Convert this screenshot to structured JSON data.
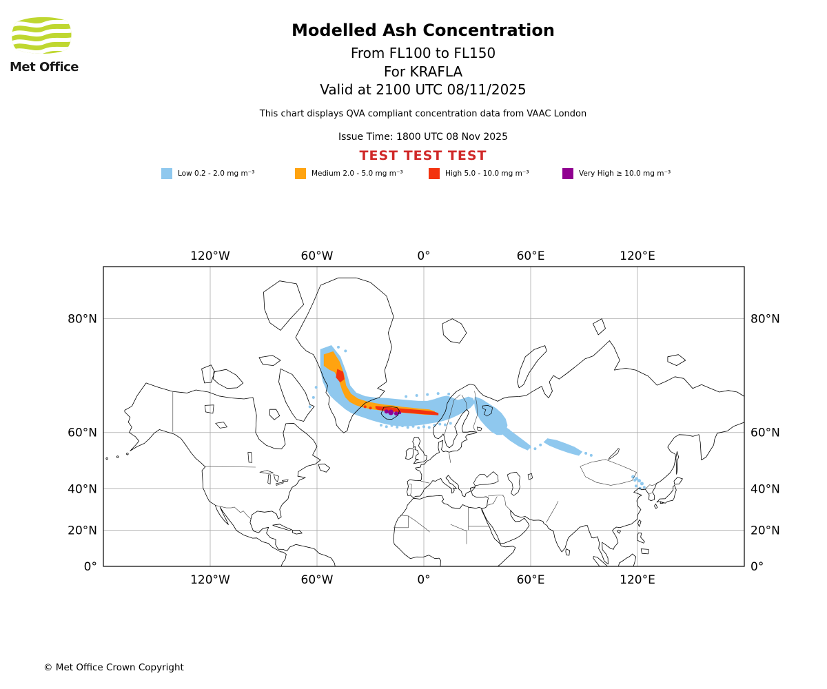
{
  "brand": {
    "logo_text": "Met Office"
  },
  "colors": {
    "logo_green": "#BFD730",
    "test_red": "#D02828",
    "grid": "#aaaaaa",
    "coast": "#000000"
  },
  "header": {
    "title": "Modelled Ash Concentration",
    "subtitle_levels": "From FL100 to FL150",
    "subtitle_volcano": "For KRAFLA",
    "subtitle_valid": "Valid at 2100 UTC 08/11/2025",
    "description": "This chart displays QVA compliant concentration data from VAAC London",
    "issue_time": "Issue Time: 1800 UTC 08 Nov 2025",
    "test_banner": "TEST TEST TEST"
  },
  "legend": {
    "items": [
      {
        "id": "low",
        "label": "Low 0.2 - 2.0 mg m⁻³",
        "color": "#8FC8EE"
      },
      {
        "id": "medium",
        "label": "Medium 2.0 - 5.0 mg m⁻³",
        "color": "#FFA310"
      },
      {
        "id": "high",
        "label": "High 5.0 - 10.0 mg m⁻³",
        "color": "#F3330F"
      },
      {
        "id": "very_high",
        "label": "Very High  ≥  10.0 mg m⁻³",
        "color": "#900090"
      }
    ]
  },
  "map": {
    "projection": "mercator",
    "extent": {
      "lon_min": -180,
      "lon_max": 180,
      "lat_min": 0,
      "lat_max": 84
    },
    "lon_ticks": [
      "120°W",
      "60°W",
      "0°",
      "60°E",
      "120°E"
    ],
    "lon_tick_values": [
      -120,
      -60,
      0,
      60,
      120
    ],
    "lat_ticks": [
      "80°N",
      "60°N",
      "40°N",
      "20°N",
      "0°"
    ],
    "lat_tick_values": [
      80,
      60,
      40,
      20,
      0
    ]
  },
  "ash_plume": {
    "layers": [
      {
        "level": "low",
        "color_ref": 0,
        "polygons": [
          [
            [
              -58,
              76.5
            ],
            [
              -52,
              77
            ],
            [
              -47,
              75.5
            ],
            [
              -43.5,
              73
            ],
            [
              -41.5,
              70.8
            ],
            [
              -38,
              69.4
            ],
            [
              -33,
              68.7
            ],
            [
              -27,
              68.4
            ],
            [
              -21,
              68.3
            ],
            [
              -15,
              68.1
            ],
            [
              -9,
              67.9
            ],
            [
              -3,
              67.7
            ],
            [
              2,
              67.7
            ],
            [
              6,
              68.1
            ],
            [
              10,
              68.6
            ],
            [
              13,
              68.8
            ],
            [
              16,
              68.4
            ],
            [
              19,
              67.9
            ],
            [
              22,
              68.2
            ],
            [
              25,
              68.6
            ],
            [
              27.5,
              68.3
            ],
            [
              28.5,
              67.4
            ],
            [
              26,
              66.3
            ],
            [
              22.5,
              65.4
            ],
            [
              19,
              64.6
            ],
            [
              15,
              63.8
            ],
            [
              11,
              63.2
            ],
            [
              7,
              62.8
            ],
            [
              3,
              62.5
            ],
            [
              -1,
              62.2
            ],
            [
              -5,
              62
            ],
            [
              -9,
              61.8
            ],
            [
              -13,
              61.8
            ],
            [
              -17,
              62
            ],
            [
              -21,
              62.3
            ],
            [
              -25,
              62.8
            ],
            [
              -29,
              63.3
            ],
            [
              -33,
              63.9
            ],
            [
              -37,
              64.5
            ],
            [
              -41,
              65.2
            ],
            [
              -44,
              66
            ],
            [
              -47,
              67
            ],
            [
              -50,
              68
            ],
            [
              -52.5,
              68.9
            ],
            [
              -54.5,
              70
            ],
            [
              -56.5,
              71.5
            ],
            [
              -58,
              73.5
            ],
            [
              -58,
              76.5
            ]
          ],
          [
            [
              28.8,
              68.6
            ],
            [
              32.5,
              68.1
            ],
            [
              36.5,
              67.1
            ],
            [
              40.5,
              66.1
            ],
            [
              43.5,
              65
            ],
            [
              45.8,
              63.6
            ],
            [
              46.8,
              62
            ],
            [
              46,
              60.4
            ],
            [
              43.8,
              59.4
            ],
            [
              41,
              59.4
            ],
            [
              38,
              60.3
            ],
            [
              34.8,
              61.8
            ],
            [
              31.8,
              63.4
            ],
            [
              29.8,
              65
            ],
            [
              28.8,
              66.4
            ],
            [
              28.4,
              67.6
            ],
            [
              28.8,
              68.6
            ]
          ],
          [
            [
              45,
              61.8
            ],
            [
              49,
              60.3
            ],
            [
              53,
              58.8
            ],
            [
              57,
              57.2
            ],
            [
              60,
              55.9
            ],
            [
              58.3,
              54.7
            ],
            [
              53.5,
              55.9
            ],
            [
              48.5,
              57.7
            ],
            [
              44.5,
              59.4
            ],
            [
              43.2,
              60.7
            ],
            [
              45,
              61.8
            ]
          ],
          [
            [
              69.5,
              58.2
            ],
            [
              74.5,
              57.7
            ],
            [
              79.5,
              56.7
            ],
            [
              84.5,
              55.6
            ],
            [
              88.8,
              54.1
            ],
            [
              87,
              52.9
            ],
            [
              81.5,
              53.8
            ],
            [
              75.5,
              55
            ],
            [
              70.5,
              56.2
            ],
            [
              67.5,
              57.2
            ],
            [
              69.5,
              58.2
            ]
          ]
        ],
        "dots": [
          [
            -24,
            62,
            2
          ],
          [
            -21,
            61.6,
            2
          ],
          [
            -18,
            61.9,
            2
          ],
          [
            -15,
            61.5,
            2
          ],
          [
            -12,
            61.8,
            2
          ],
          [
            -9,
            61.4,
            2
          ],
          [
            -6,
            61.7,
            2
          ],
          [
            -3,
            61.3,
            2
          ],
          [
            0,
            61.6,
            2
          ],
          [
            3,
            61.4,
            2
          ],
          [
            6,
            62,
            2
          ],
          [
            9,
            62.3,
            2
          ],
          [
            12,
            62.1,
            2
          ],
          [
            15,
            62.5,
            2
          ],
          [
            -10,
            68.7,
            2
          ],
          [
            -4,
            68.9,
            2
          ],
          [
            2,
            69.1,
            2
          ],
          [
            8,
            69.3,
            2
          ],
          [
            14,
            69.2,
            2
          ],
          [
            33,
            66.6,
            2
          ],
          [
            37,
            65.6,
            2
          ],
          [
            47.5,
            60.6,
            2
          ],
          [
            51.5,
            58.9,
            2
          ],
          [
            55.5,
            57.3,
            2
          ],
          [
            59.5,
            55.6,
            2
          ],
          [
            62.5,
            55.1,
            2
          ],
          [
            65.5,
            56.3,
            2
          ],
          [
            91,
            53.6,
            2
          ],
          [
            94,
            52.9,
            2
          ],
          [
            117.5,
            45,
            2.5
          ],
          [
            119.5,
            44.2,
            2.5
          ],
          [
            121,
            43.4,
            2.5
          ],
          [
            122.5,
            42.2,
            2.5
          ],
          [
            119.2,
            41.2,
            2
          ],
          [
            123.8,
            40.6,
            2
          ],
          [
            121.5,
            40.2,
            2
          ],
          [
            118.5,
            43.6,
            2
          ],
          [
            -62,
            68.5,
            2
          ],
          [
            -64,
            66.5,
            2
          ],
          [
            -60.5,
            70.5,
            2
          ],
          [
            -48,
            76.8,
            2
          ],
          [
            -44,
            76.3,
            2
          ]
        ]
      },
      {
        "level": "medium",
        "color_ref": 1,
        "polygons": [
          [
            [
              -56,
              75.8
            ],
            [
              -51,
              76.2
            ],
            [
              -47.5,
              74.8
            ],
            [
              -45,
              72.8
            ],
            [
              -43.8,
              70.8
            ],
            [
              -41,
              69.2
            ],
            [
              -37,
              68.2
            ],
            [
              -32,
              67.6
            ],
            [
              -27,
              67.2
            ],
            [
              -22,
              66.9
            ],
            [
              -17,
              66.7
            ],
            [
              -12,
              66.4
            ],
            [
              -7,
              66.2
            ],
            [
              -2,
              66
            ],
            [
              3,
              65.8
            ],
            [
              6,
              65.4
            ],
            [
              6,
              64.7
            ],
            [
              1,
              64.7
            ],
            [
              -4,
              64.9
            ],
            [
              -9,
              65.1
            ],
            [
              -14,
              65.3
            ],
            [
              -19,
              65.5
            ],
            [
              -24,
              65.7
            ],
            [
              -29,
              66
            ],
            [
              -34,
              66.4
            ],
            [
              -38,
              66.9
            ],
            [
              -41.5,
              67.6
            ],
            [
              -44,
              68.6
            ],
            [
              -45.8,
              70
            ],
            [
              -47.5,
              71.8
            ],
            [
              -50,
              73.2
            ],
            [
              -53,
              73.6
            ],
            [
              -56,
              74.2
            ],
            [
              -56,
              75.8
            ]
          ]
        ],
        "dots": [
          [
            -34,
            67.4,
            2
          ],
          [
            -30,
            67,
            2
          ],
          [
            -20,
            66.3,
            2
          ],
          [
            -8,
            65.7,
            2
          ],
          [
            2,
            65.2,
            2
          ]
        ]
      },
      {
        "level": "high",
        "color_ref": 2,
        "polygons": [
          [
            [
              -27,
              66.6
            ],
            [
              -21,
              66.4
            ],
            [
              -15,
              66.1
            ],
            [
              -9,
              65.9
            ],
            [
              -3,
              65.7
            ],
            [
              2,
              65.5
            ],
            [
              5.5,
              65.3
            ],
            [
              8,
              65
            ],
            [
              8,
              64.6
            ],
            [
              3,
              64.75
            ],
            [
              -2,
              64.9
            ],
            [
              -7,
              65.1
            ],
            [
              -12,
              65.25
            ],
            [
              -17,
              65.45
            ],
            [
              -22,
              65.65
            ],
            [
              -26,
              65.9
            ],
            [
              -27,
              66.2
            ],
            [
              -27,
              66.6
            ]
          ],
          [
            [
              -48.5,
              73.6
            ],
            [
              -45.5,
              73.2
            ],
            [
              -44.8,
              72
            ],
            [
              -47,
              71.5
            ],
            [
              -49.2,
              72.3
            ],
            [
              -48.5,
              73.6
            ]
          ]
        ],
        "dots": [
          [
            -30,
            66.2,
            2
          ],
          [
            -33,
            66.5,
            2
          ]
        ]
      },
      {
        "level": "very_high",
        "color_ref": 3,
        "polygons": [],
        "dots": [
          [
            -18.5,
            65.2,
            4
          ],
          [
            -15.5,
            64.95,
            3
          ],
          [
            -21,
            65.4,
            3
          ],
          [
            -13.5,
            65.1,
            2
          ]
        ]
      }
    ]
  },
  "footer": {
    "copyright": "© Met Office Crown Copyright"
  }
}
